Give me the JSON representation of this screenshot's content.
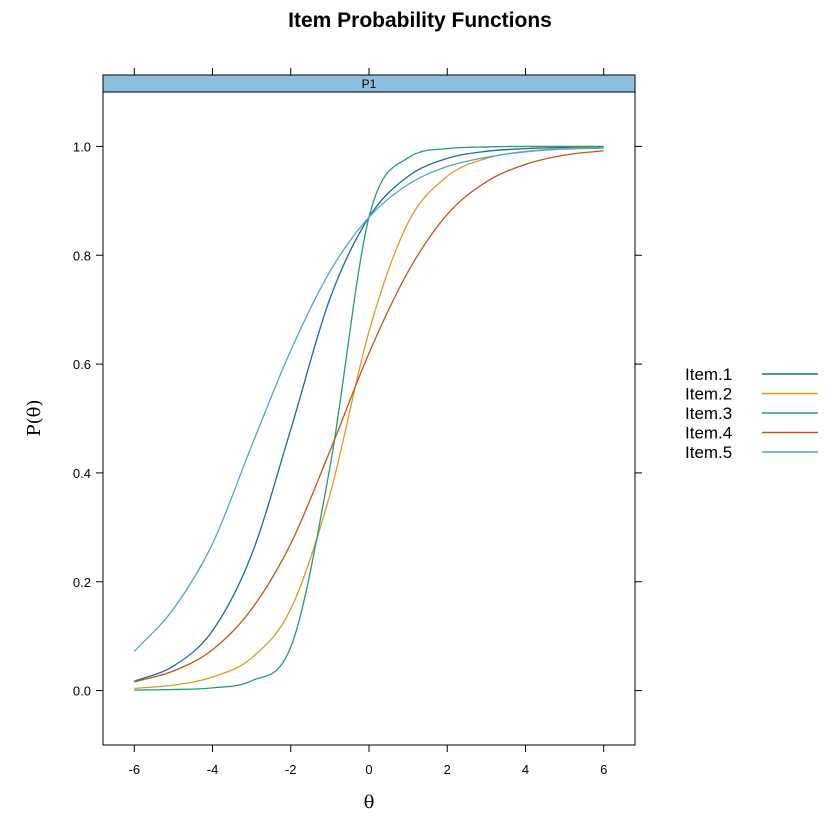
{
  "chart_data": {
    "type": "line",
    "title": "Item Probability Functions",
    "panel_label": "P1",
    "xlabel": "θ",
    "ylabel": "P(θ)",
    "xlim": [
      -6.8,
      6.8
    ],
    "ylim": [
      -0.1,
      1.1
    ],
    "x_ticks": [
      -6,
      -4,
      -2,
      0,
      2,
      4,
      6
    ],
    "y_ticks": [
      0.0,
      0.2,
      0.4,
      0.6,
      0.8,
      1.0
    ],
    "x_tick_labels": [
      "-6",
      "-4",
      "-2",
      "0",
      "2",
      "4",
      "6"
    ],
    "y_tick_labels": [
      "0.0",
      "0.2",
      "0.4",
      "0.6",
      "0.8",
      "1.0"
    ],
    "legend_position": "right",
    "strip_color": "#8fbfde",
    "x": [
      -6,
      -5,
      -4,
      -3,
      -2,
      -1,
      0,
      1,
      2,
      3,
      4,
      5,
      6
    ],
    "series": [
      {
        "name": "Item.1",
        "color": "#1f67a5",
        "values": [
          0.017,
          0.045,
          0.11,
          0.25,
          0.48,
          0.72,
          0.87,
          0.945,
          0.978,
          0.991,
          0.996,
          0.998,
          0.999
        ]
      },
      {
        "name": "Item.2",
        "color": "#e09a1a",
        "values": [
          0.004,
          0.01,
          0.025,
          0.06,
          0.15,
          0.36,
          0.66,
          0.86,
          0.945,
          0.978,
          0.991,
          0.996,
          0.998
        ]
      },
      {
        "name": "Item.3",
        "color": "#239b78",
        "values": [
          0.001,
          0.002,
          0.005,
          0.018,
          0.08,
          0.41,
          0.87,
          0.979,
          0.996,
          0.999,
          1.0,
          1.0,
          1.0
        ]
      },
      {
        "name": "Item.4",
        "color": "#c95317",
        "values": [
          0.016,
          0.036,
          0.075,
          0.15,
          0.27,
          0.44,
          0.62,
          0.77,
          0.875,
          0.935,
          0.967,
          0.984,
          0.992
        ]
      },
      {
        "name": "Item.5",
        "color": "#4fa3d8",
        "values": [
          0.072,
          0.15,
          0.27,
          0.45,
          0.625,
          0.77,
          0.87,
          0.93,
          0.963,
          0.98,
          0.99,
          0.995,
          0.997
        ]
      }
    ]
  }
}
